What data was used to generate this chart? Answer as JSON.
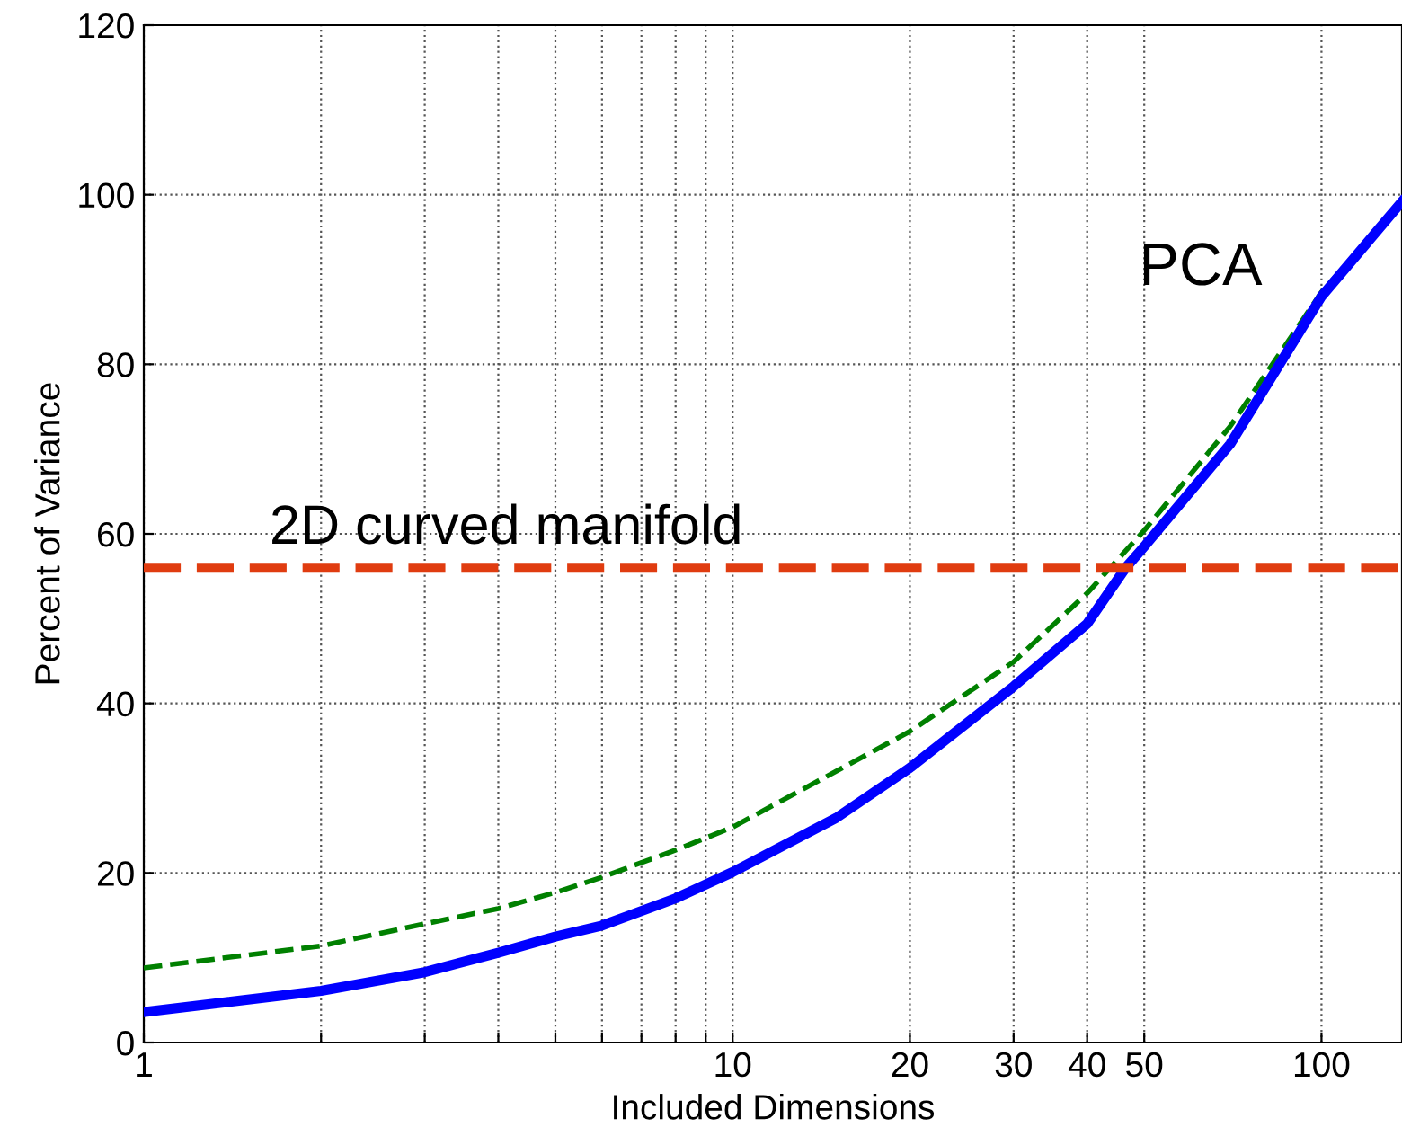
{
  "chart_data": {
    "type": "line",
    "xlabel": "Included Dimensions",
    "ylabel": "Percent of Variance",
    "log": "x",
    "xlim": [
      1,
      137
    ],
    "ylim": [
      0,
      120
    ],
    "xticks": [
      1,
      {
        "value": 2,
        "label": null
      },
      {
        "value": 3,
        "label": null
      },
      {
        "value": 4,
        "label": null
      },
      {
        "value": 5,
        "label": null
      },
      {
        "value": 6,
        "label": null
      },
      {
        "value": 7,
        "label": null
      },
      {
        "value": 8,
        "label": null
      },
      {
        "value": 9,
        "label": null
      },
      10,
      20,
      30,
      40,
      50,
      100
    ],
    "yticks": [
      0,
      20,
      40,
      60,
      80,
      100,
      120
    ],
    "grid": true,
    "series": [
      {
        "color": "#0000ff",
        "line_style": "solid",
        "x": [
          1,
          2,
          3,
          4,
          5,
          6,
          8,
          10,
          15,
          20,
          30,
          40,
          46.5,
          50,
          70,
          100,
          137
        ],
        "values": [
          3.6,
          6.1,
          8.3,
          10.6,
          12.5,
          13.8,
          17,
          20.1,
          26.5,
          32.4,
          42,
          49.4,
          56,
          58.5,
          70.6,
          88,
          99.2
        ]
      },
      {
        "color": "#008000",
        "line_style": "dashed",
        "x": [
          1,
          2,
          3,
          4,
          5,
          6,
          8,
          10,
          20,
          30,
          40,
          50,
          70,
          100,
          137
        ],
        "values": [
          8.8,
          11.4,
          14,
          15.8,
          17.7,
          19.5,
          22.7,
          25.4,
          36.7,
          44.9,
          53,
          60.4,
          72.7,
          88.5,
          99
        ]
      }
    ],
    "ref_lines": [
      {
        "axis": "y",
        "value": 56,
        "label": "2D curved manifold",
        "color": "#e03c10",
        "line_style": "dashed"
      }
    ],
    "annotations": [
      "PCA"
    ]
  }
}
